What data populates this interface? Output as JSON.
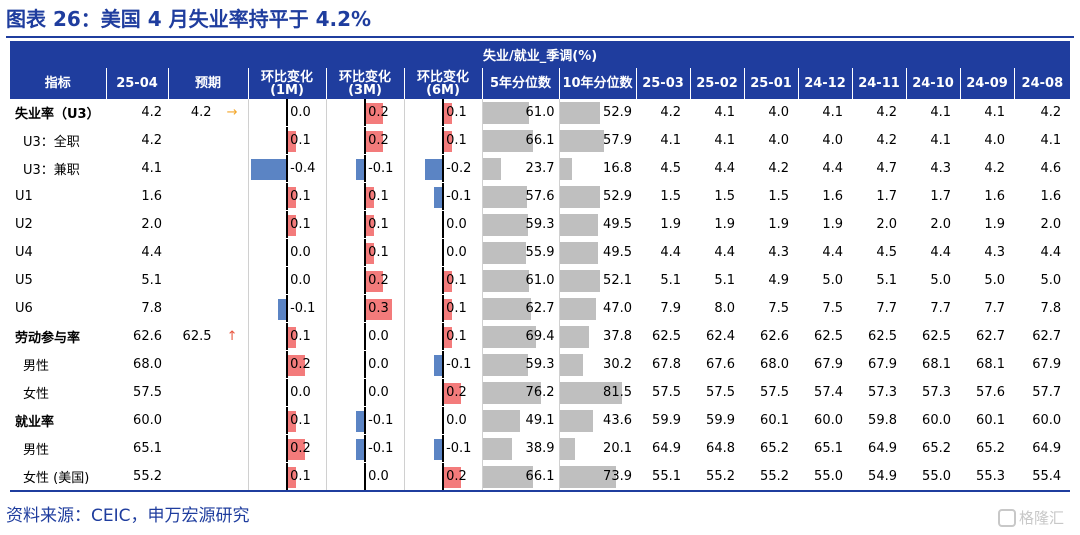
{
  "title": "图表 26：美国 4 月失业率持平于 4.2%",
  "source": "资料来源：CEIC，申万宏源研究",
  "watermark": "格隆汇",
  "table_header": "失业/就业_季调(%)",
  "columns": {
    "indicator": "指标",
    "current": "25-04",
    "forecast": "预期",
    "mom1": "环比变化 (1M)",
    "mom3": "环比变化 (3M)",
    "mom6": "环比变化 (6M)",
    "pct5": "5年分位数",
    "pct10": "10年分位数",
    "history": [
      "25-03",
      "25-02",
      "25-01",
      "24-12",
      "24-11",
      "24-10",
      "24-09",
      "24-08"
    ]
  },
  "colors": {
    "header_bg": "#1f3d9e",
    "positive_bar": "#f37b7b",
    "negative_bar": "#5b84c4",
    "percentile_bar": "#bfbfbf",
    "arrow_flat": "#f3a72b",
    "arrow_up": "#e8563f"
  },
  "chart_data": {
    "type": "table",
    "rows": [
      {
        "label": "失业率（U3）",
        "bold": true,
        "sub": false,
        "sep": false,
        "current": "4.2",
        "forecast": "4.2",
        "arrow": "→",
        "arrow_icon": "right-arrow-icon",
        "d1": 0.0,
        "d3": 0.2,
        "d6": 0.1,
        "p5": 61.0,
        "p10": 52.9,
        "history": [
          "4.2",
          "4.1",
          "4.0",
          "4.1",
          "4.2",
          "4.1",
          "4.1",
          "4.2"
        ]
      },
      {
        "label": "U3：全职",
        "bold": false,
        "sub": true,
        "sep": false,
        "current": "4.2",
        "forecast": "",
        "arrow": "",
        "d1": 0.1,
        "d3": 0.2,
        "d6": 0.1,
        "p5": 66.1,
        "p10": 57.9,
        "history": [
          "4.1",
          "4.1",
          "4.0",
          "4.0",
          "4.2",
          "4.1",
          "4.0",
          "4.1"
        ]
      },
      {
        "label": "U3：兼职",
        "bold": false,
        "sub": true,
        "sep": false,
        "current": "4.1",
        "forecast": "",
        "arrow": "",
        "d1": -0.4,
        "d3": -0.1,
        "d6": -0.2,
        "p5": 23.7,
        "p10": 16.8,
        "history": [
          "4.5",
          "4.4",
          "4.2",
          "4.4",
          "4.7",
          "4.3",
          "4.2",
          "4.6"
        ]
      },
      {
        "label": "U1",
        "bold": false,
        "sub": false,
        "sep": false,
        "current": "1.6",
        "forecast": "",
        "arrow": "",
        "d1": 0.1,
        "d3": 0.1,
        "d6": -0.1,
        "p5": 57.6,
        "p10": 52.9,
        "history": [
          "1.5",
          "1.5",
          "1.5",
          "1.6",
          "1.7",
          "1.7",
          "1.6",
          "1.6"
        ]
      },
      {
        "label": "U2",
        "bold": false,
        "sub": false,
        "sep": false,
        "current": "2.0",
        "forecast": "",
        "arrow": "",
        "d1": 0.1,
        "d3": 0.1,
        "d6": 0.0,
        "p5": 59.3,
        "p10": 49.5,
        "history": [
          "1.9",
          "1.9",
          "1.9",
          "1.9",
          "2.0",
          "2.0",
          "1.9",
          "2.0"
        ]
      },
      {
        "label": "U4",
        "bold": false,
        "sub": false,
        "sep": false,
        "current": "4.4",
        "forecast": "",
        "arrow": "",
        "d1": 0.0,
        "d3": 0.1,
        "d6": 0.0,
        "p5": 55.9,
        "p10": 49.5,
        "history": [
          "4.4",
          "4.4",
          "4.3",
          "4.4",
          "4.5",
          "4.4",
          "4.3",
          "4.4"
        ]
      },
      {
        "label": "U5",
        "bold": false,
        "sub": false,
        "sep": false,
        "current": "5.1",
        "forecast": "",
        "arrow": "",
        "d1": 0.0,
        "d3": 0.2,
        "d6": 0.1,
        "p5": 61.0,
        "p10": 52.1,
        "history": [
          "5.1",
          "5.1",
          "4.9",
          "5.0",
          "5.1",
          "5.0",
          "5.0",
          "5.0"
        ]
      },
      {
        "label": "U6",
        "bold": false,
        "sub": false,
        "sep": false,
        "current": "7.8",
        "forecast": "",
        "arrow": "",
        "d1": -0.1,
        "d3": 0.3,
        "d6": 0.1,
        "p5": 62.7,
        "p10": 47.0,
        "history": [
          "7.9",
          "8.0",
          "7.5",
          "7.5",
          "7.7",
          "7.7",
          "7.7",
          "7.8"
        ]
      },
      {
        "label": "劳动参与率",
        "bold": true,
        "sub": false,
        "sep": true,
        "current": "62.6",
        "forecast": "62.5",
        "arrow": "↑",
        "arrow_icon": "up-arrow-icon",
        "d1": 0.1,
        "d3": 0.0,
        "d6": 0.1,
        "p5": 69.4,
        "p10": 37.8,
        "history": [
          "62.5",
          "62.4",
          "62.6",
          "62.5",
          "62.5",
          "62.5",
          "62.7",
          "62.7"
        ]
      },
      {
        "label": "男性",
        "bold": false,
        "sub": true,
        "sep": false,
        "current": "68.0",
        "forecast": "",
        "arrow": "",
        "d1": 0.2,
        "d3": 0.0,
        "d6": -0.1,
        "p5": 59.3,
        "p10": 30.2,
        "history": [
          "67.8",
          "67.6",
          "68.0",
          "67.9",
          "67.9",
          "68.1",
          "68.1",
          "67.9"
        ]
      },
      {
        "label": "女性",
        "bold": false,
        "sub": true,
        "sep": false,
        "current": "57.5",
        "forecast": "",
        "arrow": "",
        "d1": 0.0,
        "d3": 0.0,
        "d6": 0.2,
        "p5": 76.2,
        "p10": 81.5,
        "history": [
          "57.5",
          "57.5",
          "57.5",
          "57.4",
          "57.3",
          "57.3",
          "57.6",
          "57.7"
        ]
      },
      {
        "label": "就业率",
        "bold": true,
        "sub": false,
        "sep": true,
        "current": "60.0",
        "forecast": "",
        "arrow": "",
        "d1": 0.1,
        "d3": -0.1,
        "d6": 0.0,
        "p5": 49.1,
        "p10": 43.6,
        "history": [
          "59.9",
          "59.9",
          "60.1",
          "60.0",
          "59.8",
          "60.0",
          "60.1",
          "60.0"
        ]
      },
      {
        "label": "男性",
        "bold": false,
        "sub": true,
        "sep": false,
        "current": "65.1",
        "forecast": "",
        "arrow": "",
        "d1": 0.2,
        "d3": -0.1,
        "d6": -0.1,
        "p5": 38.9,
        "p10": 20.1,
        "history": [
          "64.9",
          "64.8",
          "65.2",
          "65.1",
          "64.9",
          "65.2",
          "65.2",
          "64.9"
        ]
      },
      {
        "label": "女性 (美国)",
        "bold": false,
        "sub": true,
        "sep": false,
        "current": "55.2",
        "forecast": "",
        "arrow": "",
        "d1": 0.1,
        "d3": 0.0,
        "d6": 0.2,
        "p5": 66.1,
        "p10": 73.9,
        "history": [
          "55.1",
          "55.2",
          "55.2",
          "55.0",
          "54.9",
          "55.0",
          "55.3",
          "55.4"
        ]
      }
    ],
    "bar_range_mom": [
      -0.4,
      0.3
    ],
    "bar_range_percentile": [
      0,
      100
    ]
  }
}
